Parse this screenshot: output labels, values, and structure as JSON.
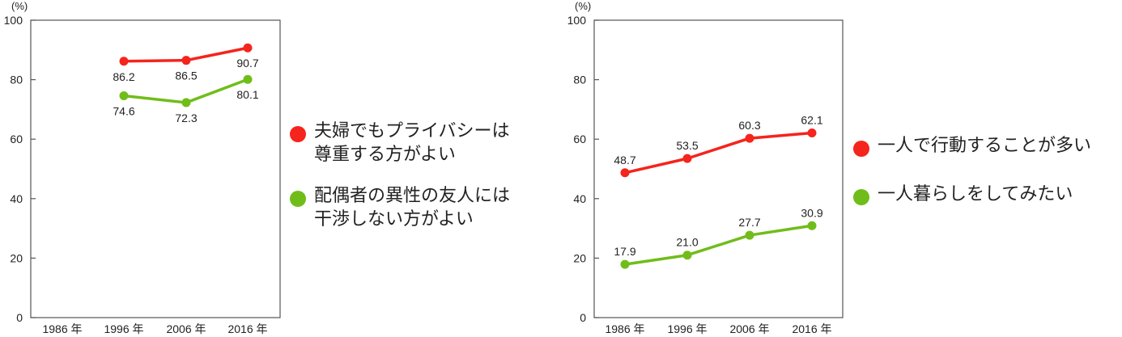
{
  "colors": {
    "red": "#f5241c",
    "green": "#70bd1a",
    "axis": "#555555"
  },
  "chart_data": [
    {
      "type": "line",
      "unit": "(%)",
      "categories": [
        "1986 年",
        "1996 年",
        "2006 年",
        "2016 年"
      ],
      "ylim": [
        0,
        100
      ],
      "yticks": [
        "0",
        "20",
        "40",
        "60",
        "80",
        "100"
      ],
      "series": [
        {
          "name": "夫婦でもプライバシーは尊重する方がよい",
          "lines": [
            "夫婦でもプライバシーは",
            "尊重する方がよい"
          ],
          "color": "red",
          "values": [
            null,
            86.2,
            86.5,
            90.7
          ],
          "labels": [
            "",
            "86.2",
            "86.5",
            "90.7"
          ]
        },
        {
          "name": "配偶者の異性の友人には干渉しない方がよい",
          "lines": [
            "配偶者の異性の友人には",
            "干渉しない方がよい"
          ],
          "color": "green",
          "values": [
            null,
            74.6,
            72.3,
            80.1
          ],
          "labels": [
            "",
            "74.6",
            "72.3",
            "80.1"
          ]
        }
      ]
    },
    {
      "type": "line",
      "unit": "(%)",
      "categories": [
        "1986 年",
        "1996 年",
        "2006 年",
        "2016 年"
      ],
      "ylim": [
        0,
        100
      ],
      "yticks": [
        "0",
        "20",
        "40",
        "60",
        "80",
        "100"
      ],
      "series": [
        {
          "name": "一人で行動することが多い",
          "lines": [
            "一人で行動することが多い"
          ],
          "color": "red",
          "values": [
            48.7,
            53.5,
            60.3,
            62.1
          ],
          "labels": [
            "48.7",
            "53.5",
            "60.3",
            "62.1"
          ]
        },
        {
          "name": "一人暮らしをしてみたい",
          "lines": [
            "一人暮らしをしてみたい"
          ],
          "color": "green",
          "values": [
            17.9,
            21.0,
            27.7,
            30.9
          ],
          "labels": [
            "17.9",
            "21.0",
            "27.7",
            "30.9"
          ]
        }
      ]
    }
  ]
}
